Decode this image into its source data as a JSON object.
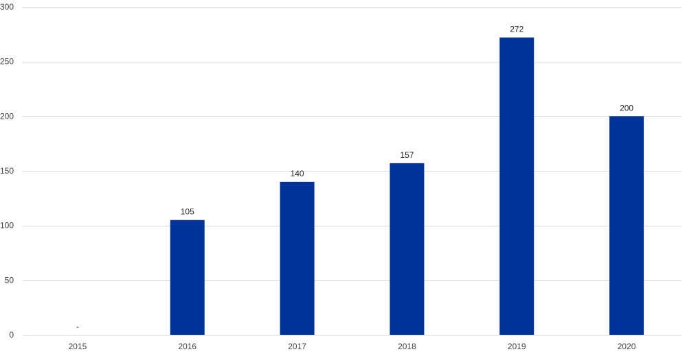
{
  "chart_data": {
    "type": "bar",
    "categories": [
      "2015",
      "2016",
      "2017",
      "2018",
      "2019",
      "2020"
    ],
    "values": [
      0,
      105,
      140,
      157,
      272,
      200
    ],
    "data_labels": [
      "-",
      "105",
      "140",
      "157",
      "272",
      "200"
    ],
    "title": "",
    "xlabel": "",
    "ylabel": "",
    "ylim": [
      0,
      300
    ],
    "yticks": [
      0,
      50,
      100,
      150,
      200,
      250,
      300
    ],
    "grid": true,
    "legend": "none",
    "colors": {
      "bar": "#003399",
      "grid": "#d9d9d9",
      "tick_text": "#404040",
      "label_text": "#262626"
    }
  }
}
